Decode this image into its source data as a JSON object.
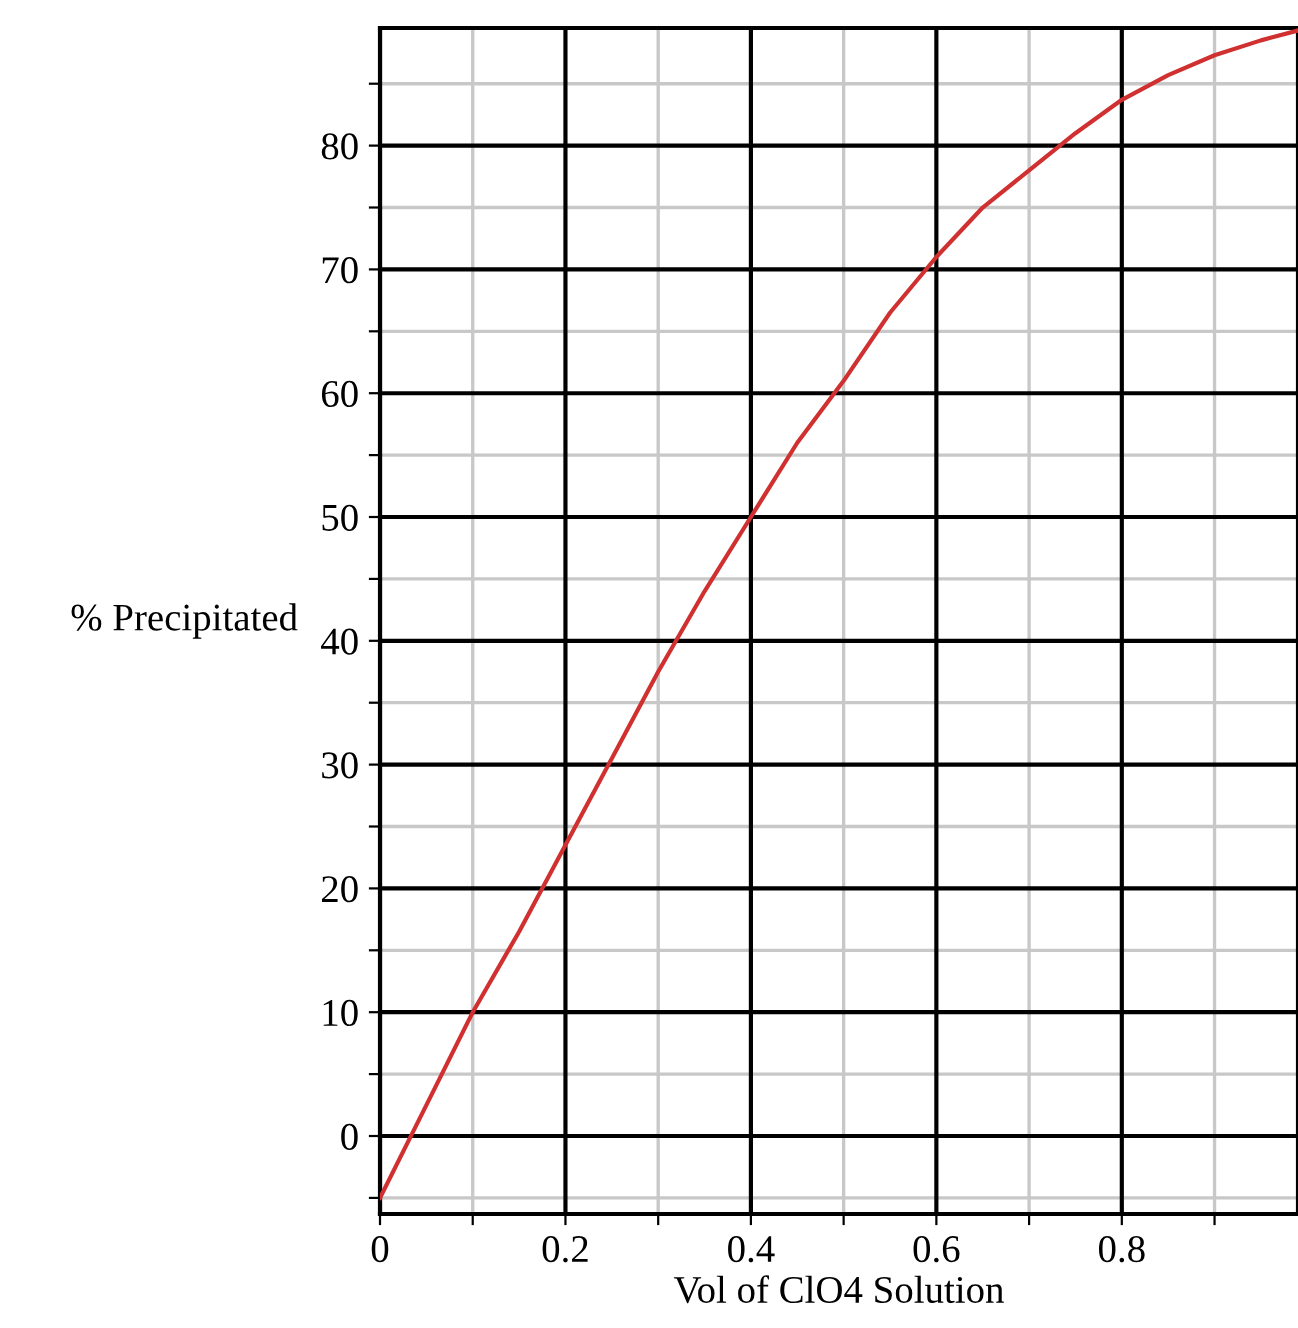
{
  "chart_data": {
    "type": "line",
    "xlabel": "Vol of ClO4 Solution",
    "ylabel": "% Precipitated",
    "x": [
      0,
      0.05,
      0.1,
      0.15,
      0.2,
      0.25,
      0.3,
      0.35,
      0.4,
      0.45,
      0.5,
      0.55,
      0.6,
      0.65,
      0.7,
      0.75,
      0.8,
      0.85,
      0.9,
      0.95,
      0.99
    ],
    "series": [
      {
        "color": "#d03030",
        "values": [
          -5,
          2.5,
          10,
          16.5,
          23.5,
          30.5,
          37.5,
          44,
          50,
          56,
          61,
          66.5,
          71,
          75,
          78,
          81,
          83.7,
          85.7,
          87.3,
          88.5,
          89.3
        ]
      }
    ],
    "xlim": [
      0,
      0.99
    ],
    "ylim": [
      -6.3,
      89.5
    ],
    "xticks": [
      0,
      {
        "value": 0.1,
        "label": null
      },
      0.2,
      {
        "value": 0.3,
        "label": null
      },
      0.4,
      {
        "value": 0.5,
        "label": null
      },
      0.6,
      {
        "value": 0.7,
        "label": null
      },
      0.8,
      {
        "value": 0.9,
        "label": null
      }
    ],
    "yticks": [
      {
        "value": -5,
        "label": null
      },
      0,
      {
        "value": 5,
        "label": null
      },
      10,
      {
        "value": 15,
        "label": null
      },
      20,
      {
        "value": 25,
        "label": null
      },
      30,
      {
        "value": 35,
        "label": null
      },
      40,
      {
        "value": 45,
        "label": null
      },
      50,
      {
        "value": 55,
        "label": null
      },
      60,
      {
        "value": 65,
        "label": null
      },
      70,
      {
        "value": 75,
        "label": null
      },
      80,
      {
        "value": 85,
        "label": null
      }
    ],
    "grid": true,
    "marker": "none",
    "line_style": "solid",
    "legend": false
  }
}
